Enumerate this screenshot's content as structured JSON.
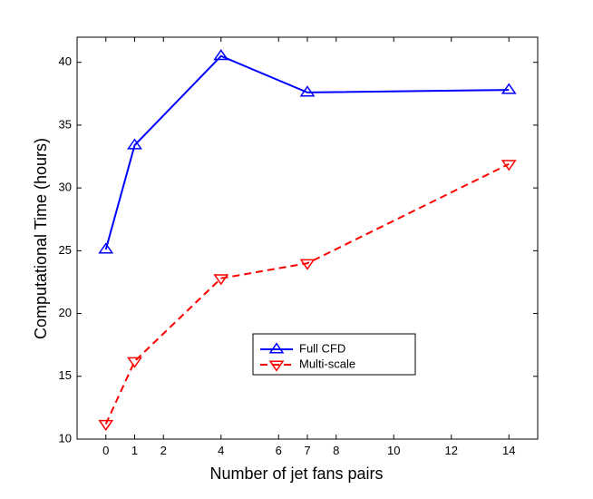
{
  "chart_data": {
    "type": "line",
    "title": "",
    "xlabel": "Number of jet fans pairs",
    "ylabel": "Computational Time (hours)",
    "xlim": [
      -1,
      15
    ],
    "ylim": [
      10,
      42
    ],
    "xticks": [
      0,
      1,
      2,
      4,
      6,
      7,
      8,
      10,
      12,
      14
    ],
    "yticks": [
      10,
      15,
      20,
      25,
      30,
      35,
      40
    ],
    "grid": false,
    "legend_position": "center-bottom",
    "series": [
      {
        "name": "Full CFD",
        "color": "#0000ff",
        "line_style": "solid",
        "marker": "triangle-up",
        "x": [
          0,
          1,
          4,
          7,
          14
        ],
        "y": [
          25.1,
          33.4,
          40.5,
          37.6,
          37.8
        ]
      },
      {
        "name": "Multi-scale",
        "color": "#ff0000",
        "line_style": "dashed",
        "marker": "triangle-down",
        "x": [
          0,
          1,
          4,
          7,
          14
        ],
        "y": [
          11.2,
          16.2,
          22.8,
          24.0,
          31.9
        ]
      }
    ]
  }
}
